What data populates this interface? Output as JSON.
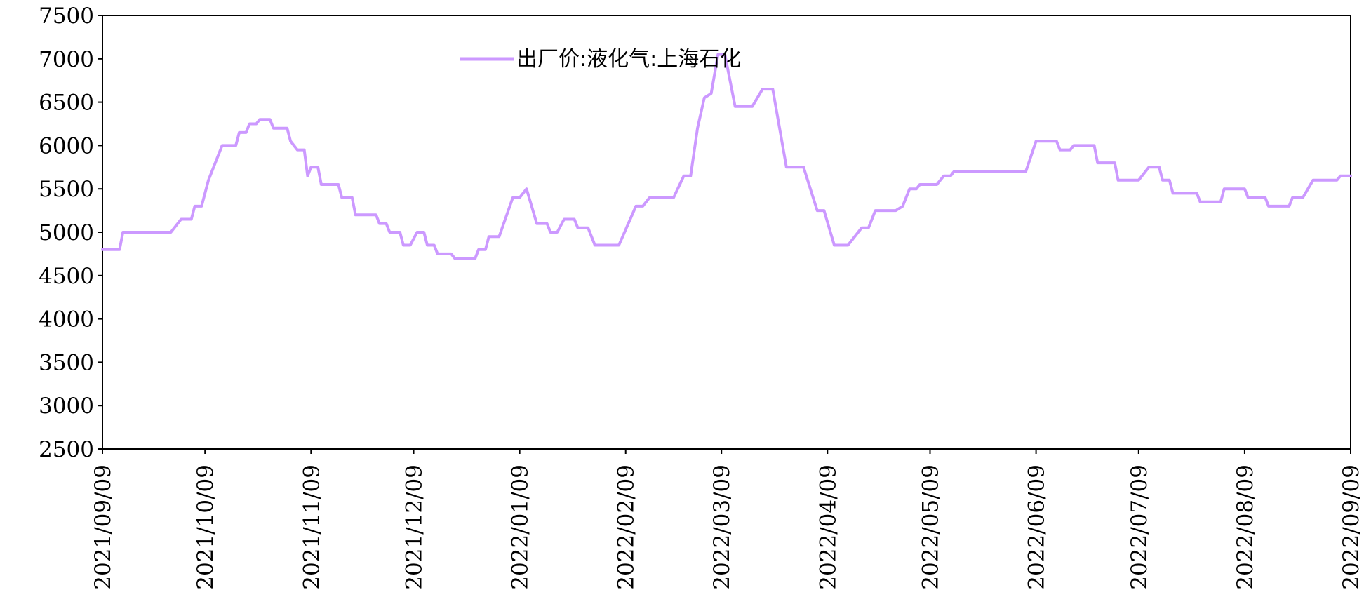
{
  "chart_data": {
    "type": "line",
    "title": "",
    "xlabel": "",
    "ylabel": "",
    "ylim": [
      2500,
      7500
    ],
    "y_ticks": [
      2500,
      3000,
      3500,
      4000,
      4500,
      5000,
      5500,
      6000,
      6500,
      7000,
      7500
    ],
    "x_range": [
      "2021-09-09",
      "2022-09-09"
    ],
    "x_ticks": [
      "2021/09/09",
      "2021/10/09",
      "2021/11/09",
      "2021/12/09",
      "2022/01/09",
      "2022/02/09",
      "2022/03/09",
      "2022/04/09",
      "2022/05/09",
      "2022/06/09",
      "2022/07/09",
      "2022/08/09",
      "2022/09/09"
    ],
    "grid": false,
    "legend": "top-center",
    "series": [
      {
        "name": "出厂价:液化气:上海石化",
        "color": "#cc99ff",
        "points": [
          [
            "2021-09-09",
            4800
          ],
          [
            "2021-09-14",
            4800
          ],
          [
            "2021-09-15",
            5000
          ],
          [
            "2021-09-29",
            5000
          ],
          [
            "2021-10-02",
            5150
          ],
          [
            "2021-10-05",
            5150
          ],
          [
            "2021-10-06",
            5300
          ],
          [
            "2021-10-08",
            5300
          ],
          [
            "2021-10-10",
            5600
          ],
          [
            "2021-10-14",
            6000
          ],
          [
            "2021-10-18",
            6000
          ],
          [
            "2021-10-19",
            6150
          ],
          [
            "2021-10-21",
            6150
          ],
          [
            "2021-10-22",
            6250
          ],
          [
            "2021-10-24",
            6250
          ],
          [
            "2021-10-25",
            6300
          ],
          [
            "2021-10-28",
            6300
          ],
          [
            "2021-10-29",
            6200
          ],
          [
            "2021-11-02",
            6200
          ],
          [
            "2021-11-03",
            6050
          ],
          [
            "2021-11-05",
            5950
          ],
          [
            "2021-11-07",
            5950
          ],
          [
            "2021-11-08",
            5650
          ],
          [
            "2021-11-09",
            5750
          ],
          [
            "2021-11-11",
            5750
          ],
          [
            "2021-11-12",
            5550
          ],
          [
            "2021-11-17",
            5550
          ],
          [
            "2021-11-18",
            5400
          ],
          [
            "2021-11-21",
            5400
          ],
          [
            "2021-11-22",
            5200
          ],
          [
            "2021-11-28",
            5200
          ],
          [
            "2021-11-29",
            5100
          ],
          [
            "2021-12-01",
            5100
          ],
          [
            "2021-12-02",
            5000
          ],
          [
            "2021-12-05",
            5000
          ],
          [
            "2021-12-06",
            4850
          ],
          [
            "2021-12-08",
            4850
          ],
          [
            "2021-12-10",
            5000
          ],
          [
            "2021-12-12",
            5000
          ],
          [
            "2021-12-13",
            4850
          ],
          [
            "2021-12-15",
            4850
          ],
          [
            "2021-12-16",
            4750
          ],
          [
            "2021-12-20",
            4750
          ],
          [
            "2021-12-21",
            4700
          ],
          [
            "2021-12-27",
            4700
          ],
          [
            "2021-12-28",
            4800
          ],
          [
            "2021-12-30",
            4800
          ],
          [
            "2021-12-31",
            4950
          ],
          [
            "2022-01-03",
            4950
          ],
          [
            "2022-01-07",
            5400
          ],
          [
            "2022-01-09",
            5400
          ],
          [
            "2022-01-11",
            5500
          ],
          [
            "2022-01-14",
            5100
          ],
          [
            "2022-01-17",
            5100
          ],
          [
            "2022-01-18",
            5000
          ],
          [
            "2022-01-20",
            5000
          ],
          [
            "2022-01-22",
            5150
          ],
          [
            "2022-01-25",
            5150
          ],
          [
            "2022-01-26",
            5050
          ],
          [
            "2022-01-29",
            5050
          ],
          [
            "2022-01-31",
            4850
          ],
          [
            "2022-02-07",
            4850
          ],
          [
            "2022-02-12",
            5300
          ],
          [
            "2022-02-14",
            5300
          ],
          [
            "2022-02-16",
            5400
          ],
          [
            "2022-02-23",
            5400
          ],
          [
            "2022-02-26",
            5650
          ],
          [
            "2022-02-28",
            5650
          ],
          [
            "2022-03-02",
            6200
          ],
          [
            "2022-03-04",
            6550
          ],
          [
            "2022-03-06",
            6600
          ],
          [
            "2022-03-08",
            7050
          ],
          [
            "2022-03-10",
            7050
          ],
          [
            "2022-03-13",
            6450
          ],
          [
            "2022-03-18",
            6450
          ],
          [
            "2022-03-21",
            6650
          ],
          [
            "2022-03-24",
            6650
          ],
          [
            "2022-03-28",
            5750
          ],
          [
            "2022-04-02",
            5750
          ],
          [
            "2022-04-06",
            5250
          ],
          [
            "2022-04-08",
            5250
          ],
          [
            "2022-04-11",
            4850
          ],
          [
            "2022-04-15",
            4850
          ],
          [
            "2022-04-19",
            5050
          ],
          [
            "2022-04-21",
            5050
          ],
          [
            "2022-04-23",
            5250
          ],
          [
            "2022-04-29",
            5250
          ],
          [
            "2022-05-01",
            5300
          ],
          [
            "2022-05-03",
            5500
          ],
          [
            "2022-05-05",
            5500
          ],
          [
            "2022-05-06",
            5550
          ],
          [
            "2022-05-11",
            5550
          ],
          [
            "2022-05-13",
            5650
          ],
          [
            "2022-05-15",
            5650
          ],
          [
            "2022-05-16",
            5700
          ],
          [
            "2022-06-06",
            5700
          ],
          [
            "2022-06-09",
            6050
          ],
          [
            "2022-06-15",
            6050
          ],
          [
            "2022-06-16",
            5950
          ],
          [
            "2022-06-19",
            5950
          ],
          [
            "2022-06-20",
            6000
          ],
          [
            "2022-06-26",
            6000
          ],
          [
            "2022-06-27",
            5800
          ],
          [
            "2022-07-02",
            5800
          ],
          [
            "2022-07-03",
            5600
          ],
          [
            "2022-07-09",
            5600
          ],
          [
            "2022-07-12",
            5750
          ],
          [
            "2022-07-15",
            5750
          ],
          [
            "2022-07-16",
            5600
          ],
          [
            "2022-07-18",
            5600
          ],
          [
            "2022-07-19",
            5450
          ],
          [
            "2022-07-26",
            5450
          ],
          [
            "2022-07-27",
            5350
          ],
          [
            "2022-08-02",
            5350
          ],
          [
            "2022-08-03",
            5500
          ],
          [
            "2022-08-09",
            5500
          ],
          [
            "2022-08-10",
            5400
          ],
          [
            "2022-08-15",
            5400
          ],
          [
            "2022-08-16",
            5300
          ],
          [
            "2022-08-22",
            5300
          ],
          [
            "2022-08-23",
            5400
          ],
          [
            "2022-08-26",
            5400
          ],
          [
            "2022-08-29",
            5600
          ],
          [
            "2022-09-05",
            5600
          ],
          [
            "2022-09-06",
            5650
          ],
          [
            "2022-09-09",
            5650
          ]
        ]
      }
    ]
  }
}
